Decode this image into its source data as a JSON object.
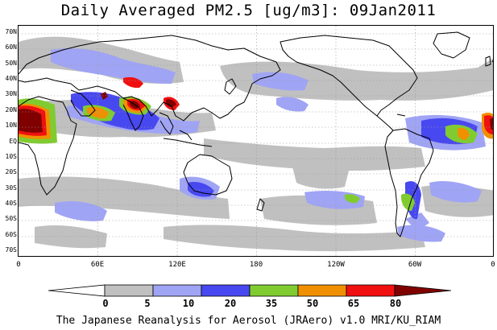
{
  "title": "Daily Averaged PM2.5 [ug/m3]: 09Jan2011",
  "footer": "The Japanese Reanalysis for Aerosol (JRAero) v1.0 MRI/KU_RIAM",
  "lat_labels": [
    "70N",
    "60N",
    "50N",
    "40N",
    "30N",
    "20N",
    "10N",
    "EQ",
    "10S",
    "20S",
    "30S",
    "40S",
    "50S",
    "60S",
    "70S"
  ],
  "lon_labels": [
    "0",
    "60E",
    "120E",
    "180",
    "120W",
    "60W",
    "0"
  ],
  "colorbar": {
    "labels": [
      "0",
      "5",
      "10",
      "20",
      "35",
      "50",
      "65",
      "80"
    ],
    "colors": [
      "#ffffff",
      "#c0c0c0",
      "#a0a4f4",
      "#4848f0",
      "#80cc30",
      "#f09000",
      "#f01010",
      "#800000"
    ]
  },
  "colors": {
    "land_outline": "#000000",
    "grid": "#9a9a9a"
  }
}
